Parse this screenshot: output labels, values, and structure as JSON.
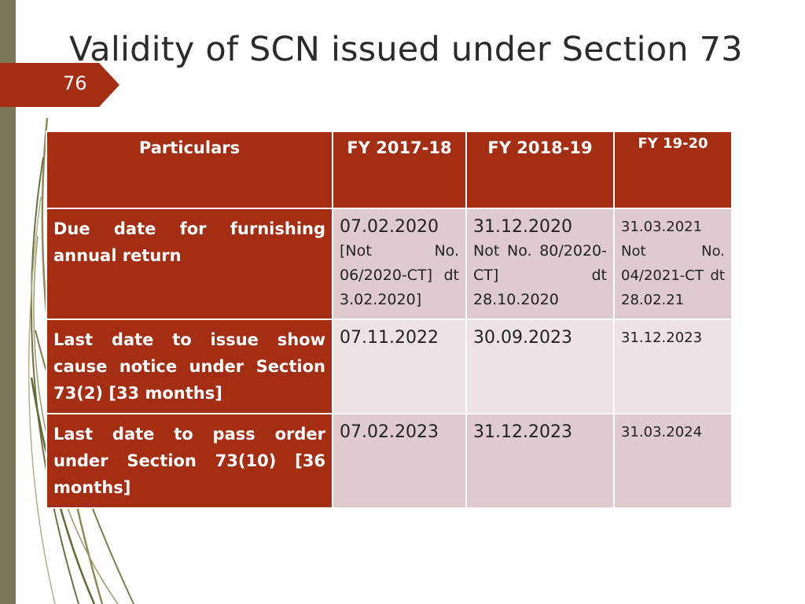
{
  "slide": {
    "title": "Validity of SCN issued under Section 73",
    "page_number": "76"
  },
  "table": {
    "headers": [
      "Particulars",
      "FY 2017-18",
      "FY 2018-19",
      "FY 19-20"
    ],
    "rows": [
      {
        "label": "Due date for furnishing annual return",
        "cells": [
          {
            "date": "07.02.2020",
            "note": "[Not No. 06/2020-CT] dt 3.02.2020]"
          },
          {
            "date": "31.12.2020",
            "note": "Not No. 80/2020-CT] dt 28.10.2020"
          },
          {
            "date": "31.03.2021",
            "note": "Not No. 04/2021-CT dt 28.02.21"
          }
        ]
      },
      {
        "label": "Last date to issue show cause notice under Section 73(2) [33 months]",
        "cells": [
          {
            "date": "07.11.2022"
          },
          {
            "date": "30.09.2023"
          },
          {
            "date": "31.12.2023"
          }
        ]
      },
      {
        "label": "Last date to pass order under Section 73(10) [36 months]",
        "cells": [
          {
            "date": "07.02.2023"
          },
          {
            "date": "31.12.2023"
          },
          {
            "date": "31.03.2024"
          }
        ]
      }
    ]
  },
  "colors": {
    "accent": "#a32e13",
    "row_dark": "#dfcbcd",
    "row_light": "#eee3e4",
    "left_bar": "#7b7757"
  }
}
